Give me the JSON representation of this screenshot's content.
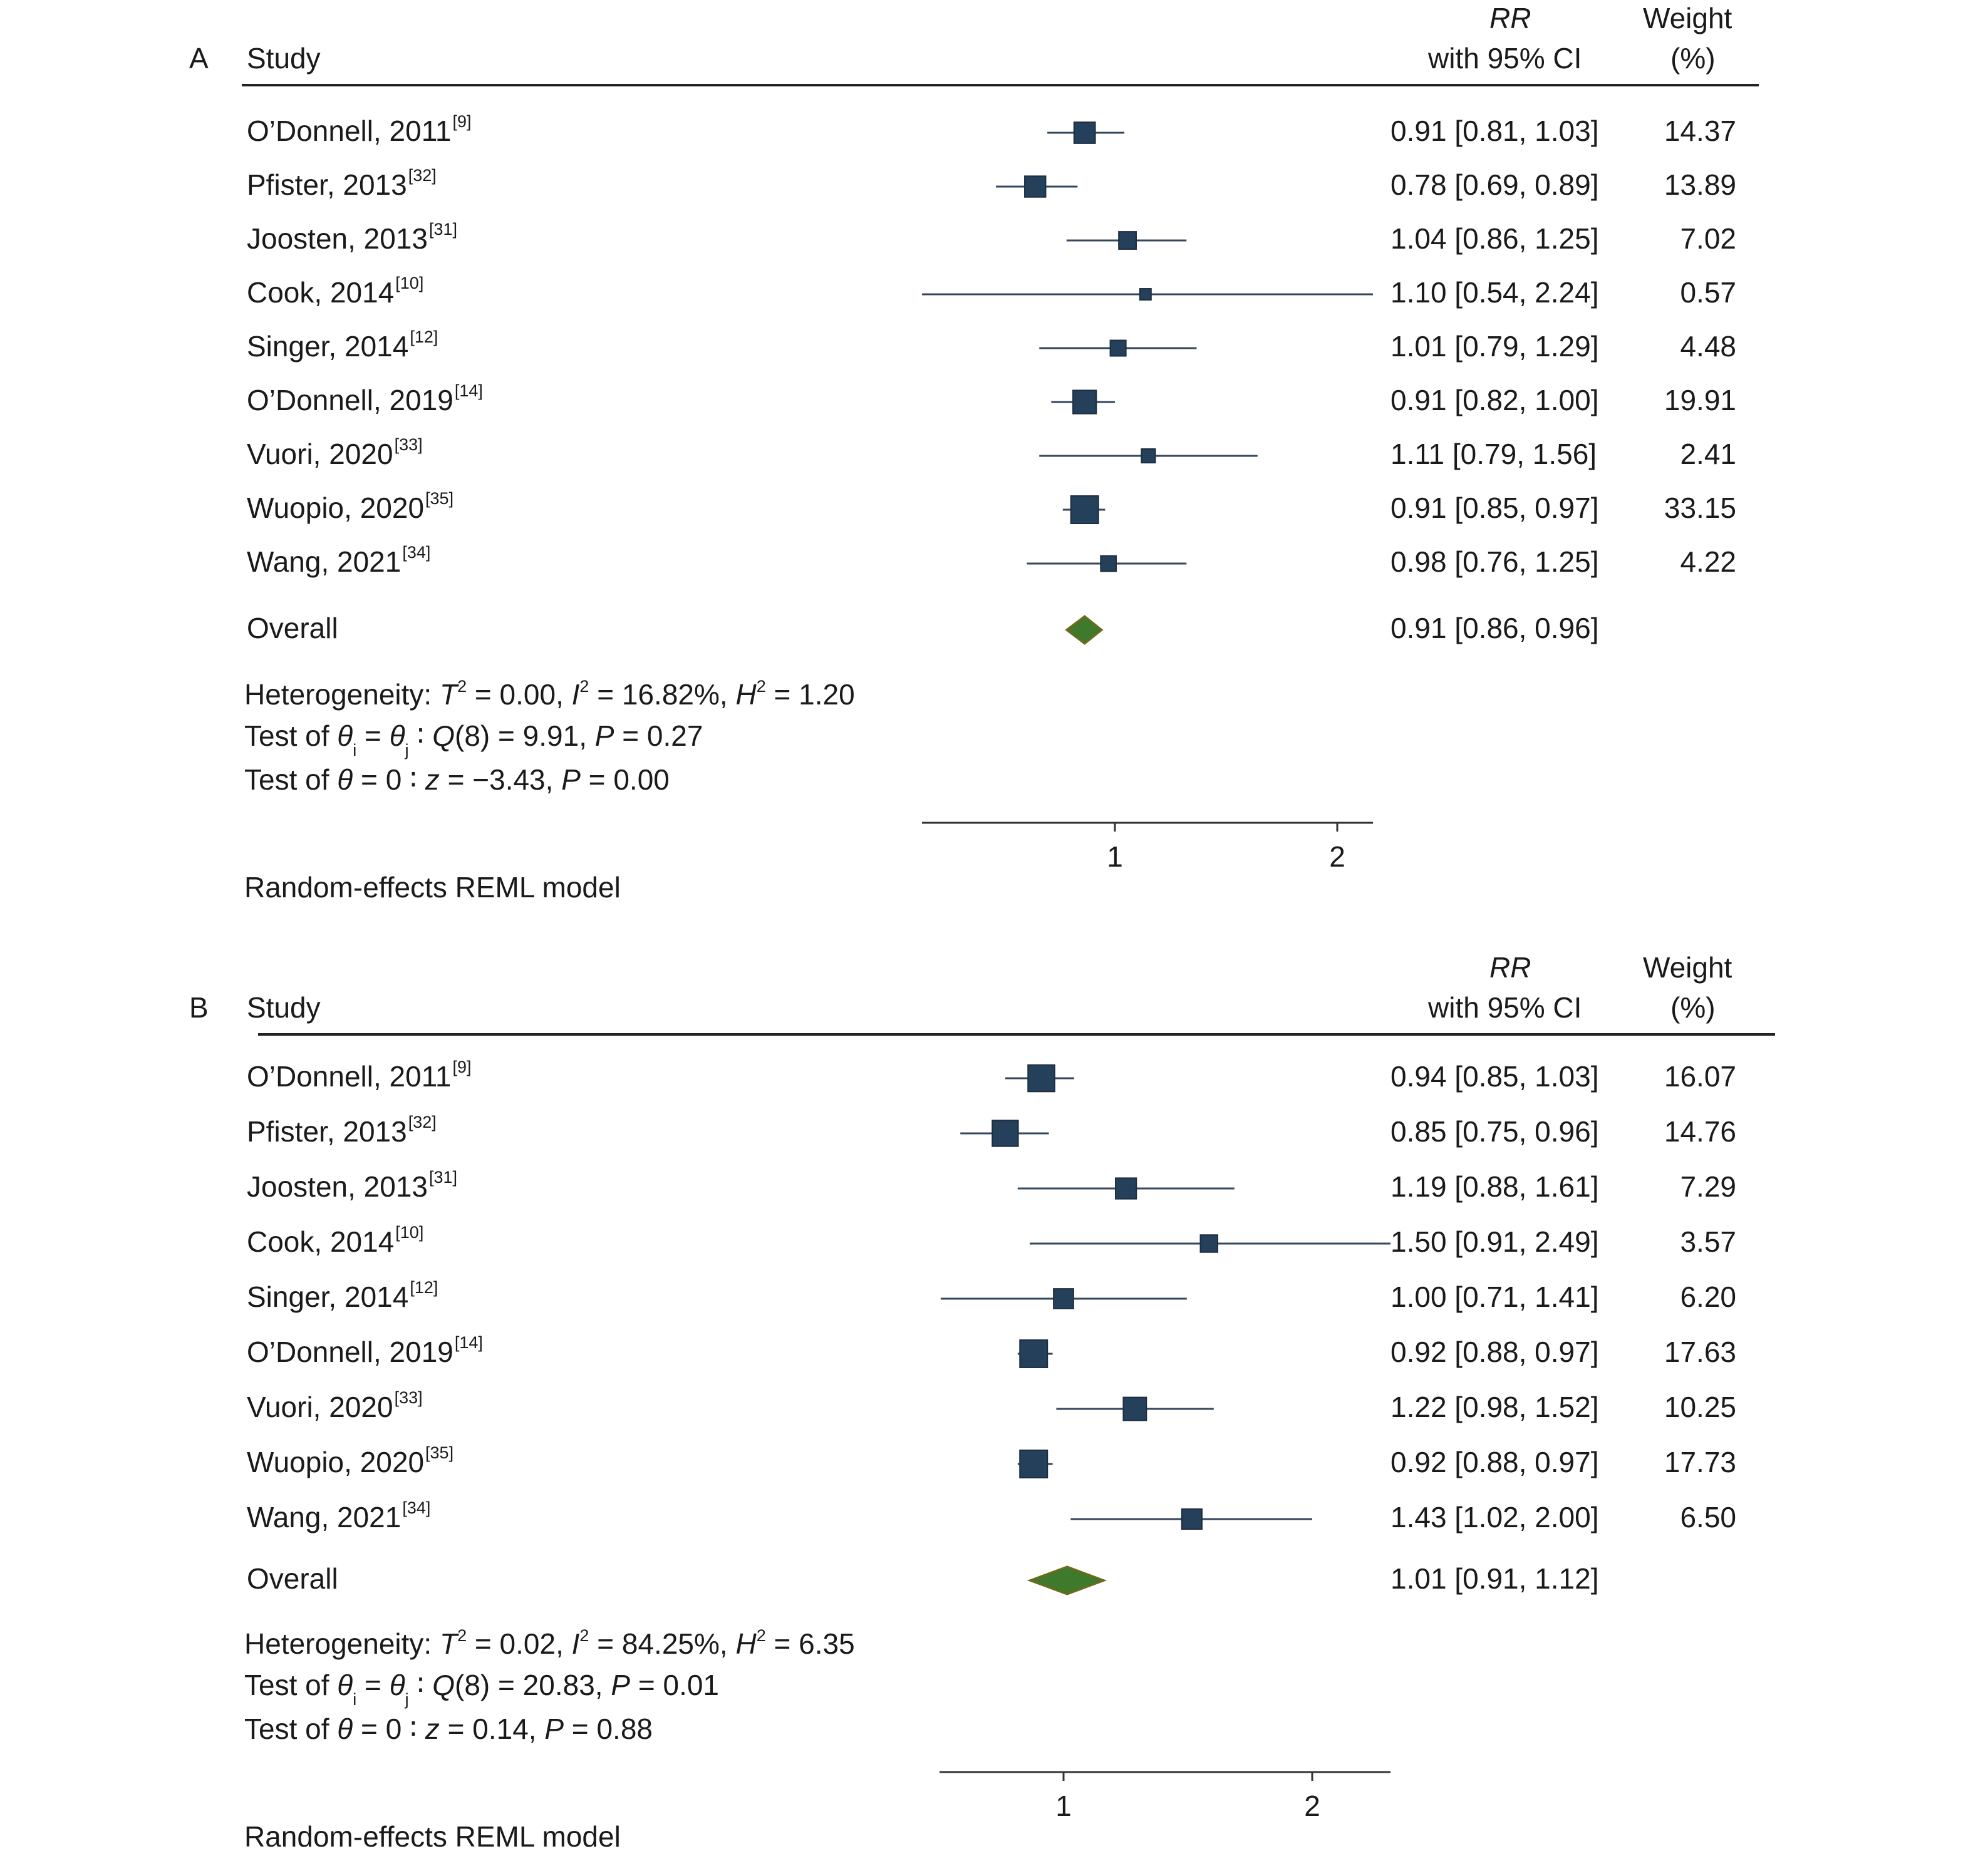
{
  "colors": {
    "marker": "#25405a",
    "ci_line": "#35475a",
    "diamond_fill": "#3f7a2c",
    "diamond_edge": "#6e6a1c",
    "text": "#1a1a1a"
  },
  "chart_data": [
    {
      "type": "forest",
      "panel_label": "A",
      "header": {
        "study": "Study",
        "rr": "RR",
        "ci": "with 95% CI",
        "weight": "Weight",
        "weight_unit": "(%)"
      },
      "rows": [
        {
          "study": "O’Donnell, 2011",
          "ref": "[9]",
          "rr": 0.91,
          "lo": 0.81,
          "hi": 1.03,
          "text": "0.91 [0.81, 1.03]",
          "weight": "14.37"
        },
        {
          "study": "Pfister, 2013",
          "ref": "[32]",
          "rr": 0.78,
          "lo": 0.69,
          "hi": 0.89,
          "text": "0.78 [0.69, 0.89]",
          "weight": "13.89"
        },
        {
          "study": "Joosten, 2013",
          "ref": "[31]",
          "rr": 1.04,
          "lo": 0.86,
          "hi": 1.25,
          "text": "1.04 [0.86, 1.25]",
          "weight": "7.02"
        },
        {
          "study": "Cook, 2014",
          "ref": "[10]",
          "rr": 1.1,
          "lo": 0.54,
          "hi": 2.24,
          "text": "1.10 [0.54, 2.24]",
          "weight": "0.57"
        },
        {
          "study": "Singer, 2014",
          "ref": "[12]",
          "rr": 1.01,
          "lo": 0.79,
          "hi": 1.29,
          "text": "1.01 [0.79, 1.29]",
          "weight": "4.48"
        },
        {
          "study": "O’Donnell, 2019",
          "ref": "[14]",
          "rr": 0.91,
          "lo": 0.82,
          "hi": 1.0,
          "text": "0.91 [0.82, 1.00]",
          "weight": "19.91"
        },
        {
          "study": "Vuori, 2020",
          "ref": "[33]",
          "rr": 1.11,
          "lo": 0.79,
          "hi": 1.56,
          "text": "1.11 [0.79, 1.56]",
          "weight": "2.41"
        },
        {
          "study": "Wuopio, 2020",
          "ref": "[35]",
          "rr": 0.91,
          "lo": 0.85,
          "hi": 0.97,
          "text": "0.91 [0.85, 0.97]",
          "weight": "33.15"
        },
        {
          "study": "Wang, 2021",
          "ref": "[34]",
          "rr": 0.98,
          "lo": 0.76,
          "hi": 1.25,
          "text": "0.98 [0.76, 1.25]",
          "weight": "4.22"
        }
      ],
      "overall": {
        "label": "Overall",
        "rr": 0.91,
        "lo": 0.86,
        "hi": 0.96,
        "text": "0.91 [0.86, 0.96]"
      },
      "heterogeneity": {
        "prefix": "Heterogeneity: ",
        "t2": "0.00",
        "i2": "16.82%",
        "h2": "1.20"
      },
      "test_q": {
        "prefix": "Test of ",
        "df": "8",
        "value": "9.91",
        "p": "0.27"
      },
      "test_z": {
        "prefix": "Test of ",
        "z": "−3.43",
        "p": "0.00"
      },
      "x_axis": {
        "scale": "log",
        "ticks": [
          1,
          2
        ],
        "tick_labels": [
          "1",
          "2"
        ]
      },
      "model": "Random-effects REML model"
    },
    {
      "type": "forest",
      "panel_label": "B",
      "header": {
        "study": "Study",
        "rr": "RR",
        "ci": "with 95% CI",
        "weight": "Weight",
        "weight_unit": "(%)"
      },
      "rows": [
        {
          "study": "O’Donnell, 2011",
          "ref": "[9]",
          "rr": 0.94,
          "lo": 0.85,
          "hi": 1.03,
          "text": "0.94 [0.85, 1.03]",
          "weight": "16.07"
        },
        {
          "study": "Pfister, 2013",
          "ref": "[32]",
          "rr": 0.85,
          "lo": 0.75,
          "hi": 0.96,
          "text": "0.85 [0.75, 0.96]",
          "weight": "14.76"
        },
        {
          "study": "Joosten, 2013",
          "ref": "[31]",
          "rr": 1.19,
          "lo": 0.88,
          "hi": 1.61,
          "text": "1.19 [0.88, 1.61]",
          "weight": "7.29"
        },
        {
          "study": "Cook, 2014",
          "ref": "[10]",
          "rr": 1.5,
          "lo": 0.91,
          "hi": 2.49,
          "text": "1.50 [0.91, 2.49]",
          "weight": "3.57"
        },
        {
          "study": "Singer, 2014",
          "ref": "[12]",
          "rr": 1.0,
          "lo": 0.71,
          "hi": 1.41,
          "text": "1.00 [0.71, 1.41]",
          "weight": "6.20"
        },
        {
          "study": "O’Donnell, 2019",
          "ref": "[14]",
          "rr": 0.92,
          "lo": 0.88,
          "hi": 0.97,
          "text": "0.92 [0.88, 0.97]",
          "weight": "17.63"
        },
        {
          "study": "Vuori, 2020",
          "ref": "[33]",
          "rr": 1.22,
          "lo": 0.98,
          "hi": 1.52,
          "text": "1.22 [0.98, 1.52]",
          "weight": "10.25"
        },
        {
          "study": "Wuopio, 2020",
          "ref": "[35]",
          "rr": 0.92,
          "lo": 0.88,
          "hi": 0.97,
          "text": "0.92 [0.88, 0.97]",
          "weight": "17.73"
        },
        {
          "study": "Wang, 2021",
          "ref": "[34]",
          "rr": 1.43,
          "lo": 1.02,
          "hi": 2.0,
          "text": "1.43 [1.02, 2.00]",
          "weight": "6.50"
        }
      ],
      "overall": {
        "label": "Overall",
        "rr": 1.01,
        "lo": 0.91,
        "hi": 1.12,
        "text": "1.01 [0.91, 1.12]"
      },
      "heterogeneity": {
        "prefix": "Heterogeneity: ",
        "t2": "0.02",
        "i2": "84.25%",
        "h2": "6.35"
      },
      "test_q": {
        "prefix": "Test of ",
        "df": "8",
        "value": "20.83",
        "p": "0.01"
      },
      "test_z": {
        "prefix": "Test of ",
        "z": "0.14",
        "p": "0.88"
      },
      "x_axis": {
        "scale": "log",
        "ticks": [
          1,
          2
        ],
        "tick_labels": [
          "1",
          "2"
        ]
      },
      "model": "Random-effects REML model"
    }
  ]
}
